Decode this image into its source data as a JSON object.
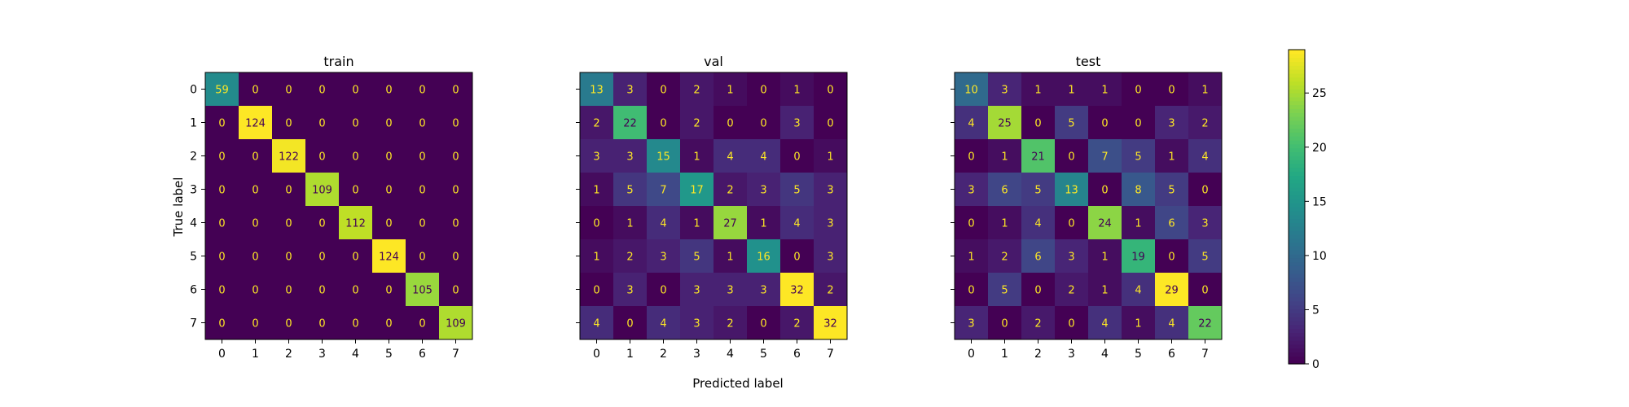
{
  "chart_data": {
    "type": "heatmap",
    "figure_xlabel": "Predicted label",
    "figure_ylabel": "True label",
    "labels": [
      "0",
      "1",
      "2",
      "3",
      "4",
      "5",
      "6",
      "7"
    ],
    "colormap": "viridis",
    "colorbar": {
      "min": 0,
      "max": 29,
      "ticks": [
        0,
        5,
        10,
        15,
        20,
        25
      ]
    },
    "panels": [
      {
        "title": "train",
        "matrix": [
          [
            59,
            0,
            0,
            0,
            0,
            0,
            0,
            0
          ],
          [
            0,
            124,
            0,
            0,
            0,
            0,
            0,
            0
          ],
          [
            0,
            0,
            122,
            0,
            0,
            0,
            0,
            0
          ],
          [
            0,
            0,
            0,
            109,
            0,
            0,
            0,
            0
          ],
          [
            0,
            0,
            0,
            0,
            112,
            0,
            0,
            0
          ],
          [
            0,
            0,
            0,
            0,
            0,
            124,
            0,
            0
          ],
          [
            0,
            0,
            0,
            0,
            0,
            0,
            105,
            0
          ],
          [
            0,
            0,
            0,
            0,
            0,
            0,
            0,
            109
          ]
        ]
      },
      {
        "title": "val",
        "matrix": [
          [
            13,
            3,
            0,
            2,
            1,
            0,
            1,
            0
          ],
          [
            2,
            22,
            0,
            2,
            0,
            0,
            3,
            0
          ],
          [
            3,
            3,
            15,
            1,
            4,
            4,
            0,
            1
          ],
          [
            1,
            5,
            7,
            17,
            2,
            3,
            5,
            3
          ],
          [
            0,
            1,
            4,
            1,
            27,
            1,
            4,
            3
          ],
          [
            1,
            2,
            3,
            5,
            1,
            16,
            0,
            3
          ],
          [
            0,
            3,
            0,
            3,
            3,
            3,
            32,
            2
          ],
          [
            4,
            0,
            4,
            3,
            2,
            0,
            2,
            32
          ]
        ]
      },
      {
        "title": "test",
        "matrix": [
          [
            10,
            3,
            1,
            1,
            1,
            0,
            0,
            1
          ],
          [
            4,
            25,
            0,
            5,
            0,
            0,
            3,
            2
          ],
          [
            0,
            1,
            21,
            0,
            7,
            5,
            1,
            4
          ],
          [
            3,
            6,
            5,
            13,
            0,
            8,
            5,
            0
          ],
          [
            0,
            1,
            4,
            0,
            24,
            1,
            6,
            3
          ],
          [
            1,
            2,
            6,
            3,
            1,
            19,
            0,
            5
          ],
          [
            0,
            5,
            0,
            2,
            1,
            4,
            29,
            0
          ],
          [
            3,
            0,
            2,
            0,
            4,
            1,
            4,
            22
          ]
        ]
      }
    ]
  }
}
